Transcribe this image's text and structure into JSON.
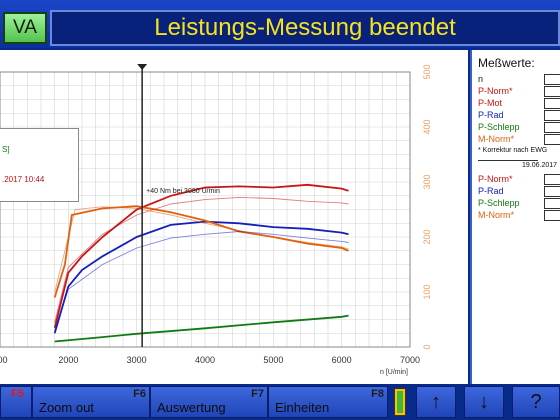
{
  "header": {
    "va_label": "VA",
    "title": "Leistungs-Messung beendet"
  },
  "legend": {
    "line1": "S]",
    "line2": ".2017 10:44"
  },
  "chart": {
    "annotation": "+40 Nm bei 3080 U/min",
    "x_unit": "n [U/min]",
    "x_ticks": [
      "2000",
      "3000",
      "4000",
      "5000",
      "6000",
      "7000"
    ],
    "x_tick_partial": "000",
    "y_ticks": [
      "0",
      "100",
      "200",
      "300",
      "400",
      "500"
    ]
  },
  "measurements": {
    "title": "Meßwerte:",
    "rows": [
      "n",
      "P-Norm*",
      "P-Mot",
      "P-Rad",
      "P-Schlepp",
      "M-Norm*"
    ],
    "note": "* Korrektur nach EWG",
    "date": "19.06.2017",
    "rows2": [
      "P-Norm*",
      "P-Rad",
      "P-Schlepp",
      "M-Norm*"
    ]
  },
  "footer": {
    "f5": "F5",
    "f6": "F6",
    "f7": "F7",
    "f8": "F8",
    "zoom_out": "Zoom out",
    "auswertung": "Auswertung",
    "einheiten": "Einheiten",
    "up": "↑",
    "down": "↓",
    "help": "?"
  },
  "colors": {
    "p_norm": "#c81414",
    "p_rad": "#1420b8",
    "p_schlepp": "#127a12",
    "m_norm": "#e06010",
    "axis": "#f0a064"
  },
  "chart_data": {
    "type": "line",
    "xlabel": "n [U/min]",
    "xlim": [
      1000,
      7000
    ],
    "ylim": [
      0,
      500
    ],
    "annotation": "+40 Nm bei 3080 U/min",
    "cursor_x": 3080,
    "series": [
      {
        "key": "p_norm",
        "x": [
          1800,
          2000,
          2200,
          2500,
          3000,
          3500,
          4000,
          4500,
          5000,
          5500,
          6000,
          6100
        ],
        "y": [
          35,
          135,
          165,
          200,
          250,
          275,
          290,
          292,
          290,
          295,
          288,
          284
        ]
      },
      {
        "key": "p_rad",
        "x": [
          1800,
          2000,
          2200,
          2500,
          3000,
          3500,
          4000,
          4500,
          5000,
          5500,
          6000,
          6100
        ],
        "y": [
          25,
          110,
          140,
          165,
          200,
          222,
          228,
          225,
          218,
          215,
          208,
          205
        ]
      },
      {
        "key": "m_norm",
        "x": [
          1800,
          1950,
          2050,
          2500,
          3000,
          3500,
          4000,
          4500,
          5000,
          5500,
          6000,
          6100
        ],
        "y": [
          90,
          150,
          240,
          252,
          256,
          245,
          230,
          210,
          200,
          188,
          180,
          175
        ]
      },
      {
        "key": "p_schlepp",
        "x": [
          1800,
          2500,
          3000,
          4000,
          5000,
          6000,
          6100
        ],
        "y": [
          10,
          18,
          24,
          34,
          45,
          55,
          57
        ]
      },
      {
        "key": "p_norm_2",
        "x": [
          1800,
          2000,
          2500,
          3000,
          3500,
          4000,
          4500,
          5000,
          5500,
          6000,
          6100
        ],
        "y": [
          45,
          145,
          205,
          240,
          260,
          268,
          272,
          270,
          265,
          262,
          260
        ]
      },
      {
        "key": "p_rad_2",
        "x": [
          1800,
          2000,
          2500,
          3000,
          3500,
          4000,
          4500,
          5000,
          5500,
          6000,
          6100
        ],
        "y": [
          30,
          105,
          150,
          180,
          198,
          205,
          210,
          205,
          198,
          192,
          190
        ]
      },
      {
        "key": "m_norm_2",
        "x": [
          1800,
          2000,
          2100,
          2500,
          3000,
          3500,
          4000,
          4500,
          5000,
          5500,
          6000,
          6100
        ],
        "y": [
          100,
          200,
          250,
          255,
          252,
          240,
          225,
          212,
          200,
          190,
          182,
          178
        ]
      }
    ]
  }
}
